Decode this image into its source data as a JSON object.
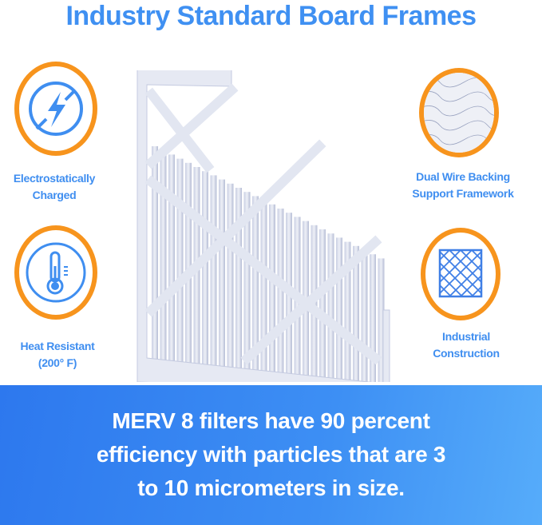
{
  "title": "Industry Standard Board Frames",
  "features": [
    {
      "label_lines": [
        "Electrostatically",
        "Charged"
      ],
      "icon": "lightning-slash-icon"
    },
    {
      "label_lines": [
        "Heat Resistant",
        "(200° F)"
      ],
      "icon": "thermometer-icon"
    },
    {
      "label_lines": [
        "Dual Wire Backing",
        "Support Framework"
      ],
      "icon": "wire-mesh-photo"
    },
    {
      "label_lines": [
        "Industrial",
        "Construction"
      ],
      "icon": "diamond-grid-icon"
    }
  ],
  "banner": {
    "lines": [
      "MERV 8 filters have 90 percent",
      "efficiency with particles that are 3",
      "to 10 micrometers in size."
    ]
  },
  "colors": {
    "accent_blue": "#3f8ef0",
    "ring_orange": "#f7941d",
    "banner_start": "#2d78ee",
    "banner_end": "#56acfa"
  }
}
